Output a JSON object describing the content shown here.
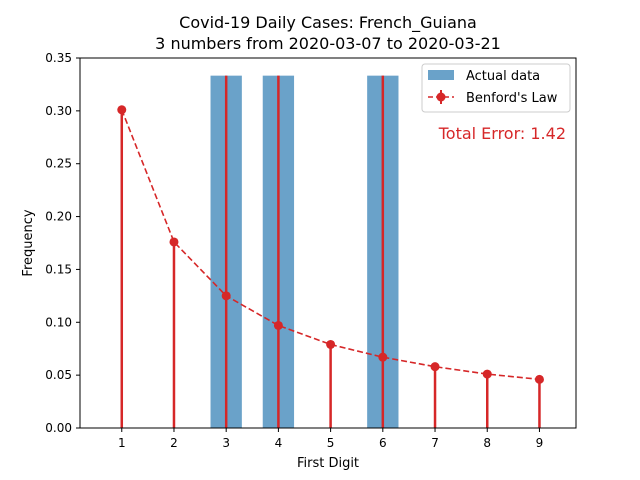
{
  "chart_data": {
    "type": "bar",
    "title_line1": "Covid-19 Daily Cases: French_Guiana",
    "title_line2": "3 numbers from 2020-03-07 to 2020-03-21",
    "xlabel": "First Digit",
    "ylabel": "Frequency",
    "categories": [
      1,
      2,
      3,
      4,
      5,
      6,
      7,
      8,
      9
    ],
    "xlim": [
      0.2,
      9.7
    ],
    "ylim": [
      0,
      0.35
    ],
    "yticks": [
      0.0,
      0.05,
      0.1,
      0.15,
      0.2,
      0.25,
      0.3,
      0.35
    ],
    "ytick_labels": [
      "0.00",
      "0.05",
      "0.10",
      "0.15",
      "0.20",
      "0.25",
      "0.30",
      "0.35"
    ],
    "xtick_labels": [
      "1",
      "2",
      "3",
      "4",
      "5",
      "6",
      "7",
      "8",
      "9"
    ],
    "series": [
      {
        "name": "Actual data",
        "kind": "bar",
        "color": "#6aa2c9",
        "values": [
          0,
          0,
          0.3333,
          0.3333,
          0,
          0.3333,
          0,
          0,
          0
        ]
      },
      {
        "name": "Benford's Law",
        "kind": "line-errorbar",
        "color": "#d62728",
        "values": [
          0.301,
          0.176,
          0.125,
          0.097,
          0.079,
          0.067,
          0.058,
          0.051,
          0.046
        ]
      }
    ],
    "annotation": "Total Error: 1.42",
    "annotation_color": "#d62728",
    "legend_position": "top-right",
    "grid": false
  }
}
